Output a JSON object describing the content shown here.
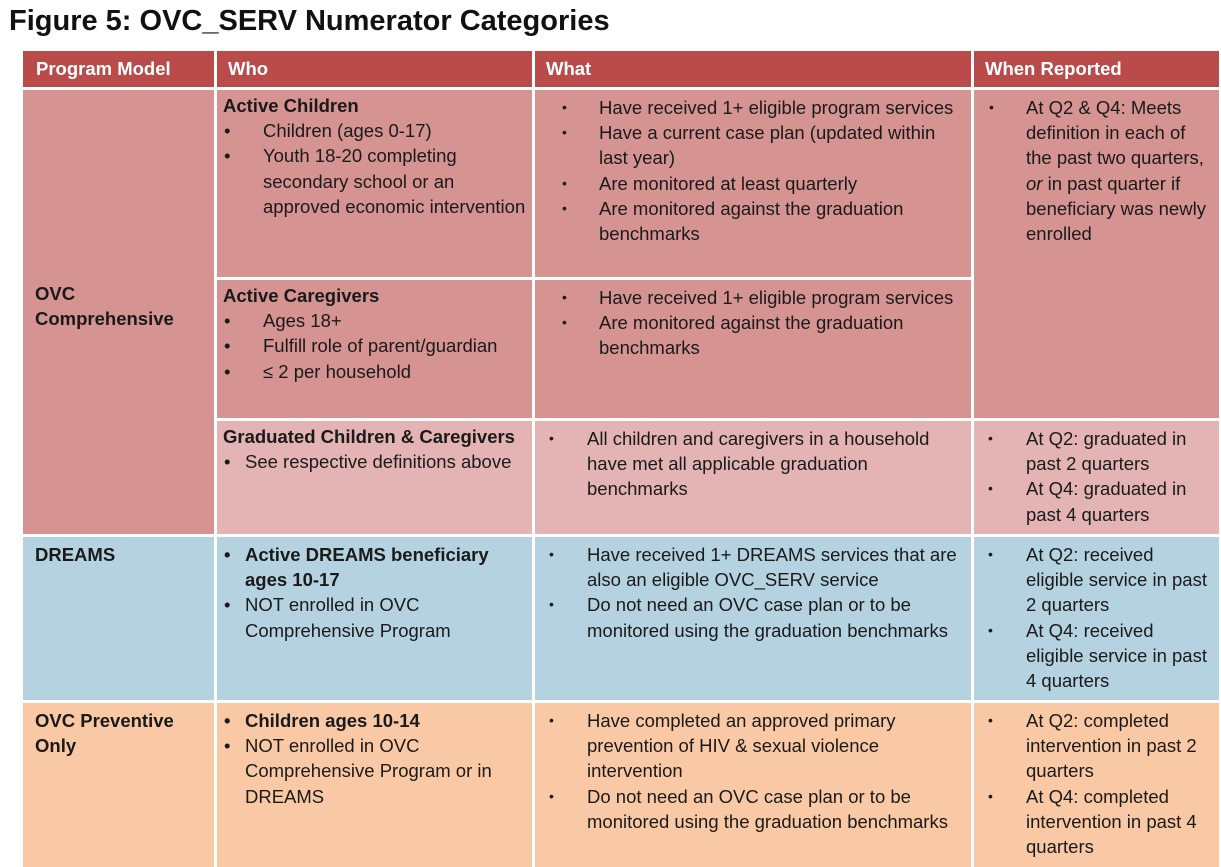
{
  "title": "Figure 5: OVC_SERV Numerator Categories",
  "headers": [
    "Program Model",
    "Who",
    "What",
    "When Reported"
  ],
  "bullet": "•",
  "comprehensive": {
    "model": "OVC Comprehensive",
    "active_children": {
      "heading": "Active Children",
      "who": [
        "Children (ages 0-17)",
        "Youth 18-20 completing secondary school or an approved economic intervention"
      ],
      "what": [
        "Have received 1+ eligible program services",
        "Have a current case plan (updated within last year)",
        "Are monitored at least quarterly",
        "Are monitored against the graduation benchmarks"
      ]
    },
    "when": {
      "before_or": "At Q2 & Q4: Meets definition in each of the past two quarters, ",
      "or": "or",
      "after_or": " in past quarter if beneficiary was newly enrolled"
    },
    "active_caregivers": {
      "heading": "Active Caregivers",
      "who": [
        "Ages 18+",
        "Fulfill role of parent/guardian",
        "≤ 2 per household"
      ],
      "what": [
        "Have received 1+ eligible program services",
        "Are monitored against the graduation benchmarks"
      ]
    },
    "graduated": {
      "heading": "Graduated Children & Caregivers",
      "who": [
        "See respective definitions above"
      ],
      "what": [
        "All children and caregivers in a household have met all applicable graduation benchmarks"
      ],
      "when": [
        "At Q2: graduated in past 2 quarters",
        "At Q4: graduated in  past 4 quarters"
      ]
    }
  },
  "dreams": {
    "model": "DREAMS",
    "who_bold": "Active DREAMS beneficiary ages 10-17",
    "who": "NOT enrolled in OVC Comprehensive Program",
    "what": [
      "Have received 1+ DREAMS services that are also an eligible OVC_SERV service",
      "Do not need an OVC case plan or to be monitored using the graduation benchmarks"
    ],
    "when": [
      "At Q2: received eligible service in past 2 quarters",
      "At Q4: received eligible service in past 4 quarters"
    ]
  },
  "preventive": {
    "model": "OVC Preventive Only",
    "who_bold": "Children ages 10-14",
    "who": "NOT enrolled in OVC Comprehensive Program or in DREAMS",
    "what": [
      "Have completed an approved primary prevention of HIV & sexual violence intervention",
      "Do not need an OVC case plan or to be monitored using the graduation benchmarks"
    ],
    "when": [
      "At Q2: completed intervention in past 2 quarters",
      "At Q4: completed intervention in past 4 quarters"
    ]
  },
  "colors": {
    "header": "#b94c4b",
    "comprehensive_active": "#d59391",
    "comprehensive_graduated": "#e3b4b3",
    "dreams": "#b4d2df",
    "preventive": "#f9c9a6"
  }
}
